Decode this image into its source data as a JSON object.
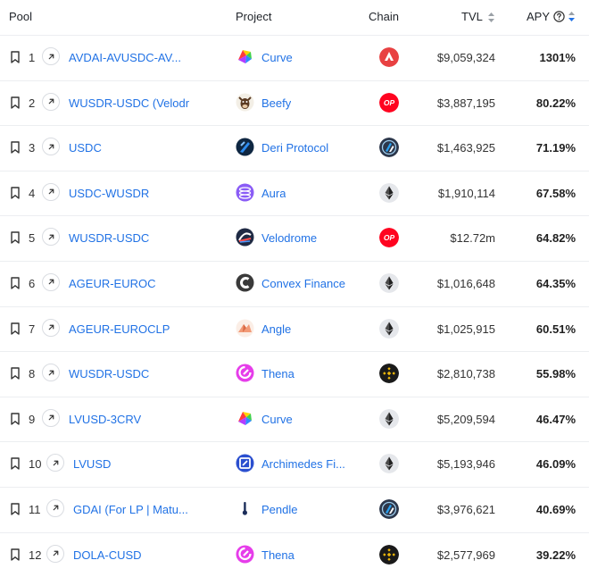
{
  "header": {
    "pool": "Pool",
    "project": "Project",
    "chain": "Chain",
    "tvl": "TVL",
    "apy": "APY"
  },
  "colors": {
    "link": "#2172e5",
    "sort_active": "#2172e5",
    "sort_inactive": "#9aa0a6"
  },
  "rows": [
    {
      "rank": "1",
      "pool": "AVDAI-AVUSDC-AV...",
      "project": "Curve",
      "project_icon": "curve-icon",
      "chain": "Avalanche",
      "chain_icon": "avalanche-icon",
      "tvl": "$9,059,324",
      "apy": "1301%"
    },
    {
      "rank": "2",
      "pool": "WUSDR-USDC (Velodr",
      "project": "Beefy",
      "project_icon": "beefy-icon",
      "chain": "Optimism",
      "chain_icon": "optimism-icon",
      "tvl": "$3,887,195",
      "apy": "80.22%"
    },
    {
      "rank": "3",
      "pool": "USDC",
      "project": "Deri Protocol",
      "project_icon": "deri-icon",
      "chain": "Arbitrum",
      "chain_icon": "arbitrum-icon",
      "tvl": "$1,463,925",
      "apy": "71.19%"
    },
    {
      "rank": "4",
      "pool": "USDC-WUSDR",
      "project": "Aura",
      "project_icon": "aura-icon",
      "chain": "Ethereum",
      "chain_icon": "ethereum-icon",
      "tvl": "$1,910,114",
      "apy": "67.58%"
    },
    {
      "rank": "5",
      "pool": "WUSDR-USDC",
      "project": "Velodrome",
      "project_icon": "velodrome-icon",
      "chain": "Optimism",
      "chain_icon": "optimism-icon",
      "tvl": "$12.72m",
      "apy": "64.82%"
    },
    {
      "rank": "6",
      "pool": "AGEUR-EUROC",
      "project": "Convex Finance",
      "project_icon": "convex-icon",
      "chain": "Ethereum",
      "chain_icon": "ethereum-icon",
      "tvl": "$1,016,648",
      "apy": "64.35%"
    },
    {
      "rank": "7",
      "pool": "AGEUR-EUROCLP",
      "project": "Angle",
      "project_icon": "angle-icon",
      "chain": "Ethereum",
      "chain_icon": "ethereum-icon",
      "tvl": "$1,025,915",
      "apy": "60.51%"
    },
    {
      "rank": "8",
      "pool": "WUSDR-USDC",
      "project": "Thena",
      "project_icon": "thena-icon",
      "chain": "BSC",
      "chain_icon": "bsc-icon",
      "tvl": "$2,810,738",
      "apy": "55.98%"
    },
    {
      "rank": "9",
      "pool": "LVUSD-3CRV",
      "project": "Curve",
      "project_icon": "curve-icon",
      "chain": "Ethereum",
      "chain_icon": "ethereum-icon",
      "tvl": "$5,209,594",
      "apy": "46.47%"
    },
    {
      "rank": "10",
      "pool": "LVUSD",
      "project": "Archimedes Fi...",
      "project_icon": "archimedes-icon",
      "chain": "Ethereum",
      "chain_icon": "ethereum-icon",
      "tvl": "$5,193,946",
      "apy": "46.09%"
    },
    {
      "rank": "11",
      "pool": "GDAI (For LP | Matu...",
      "project": "Pendle",
      "project_icon": "pendle-icon",
      "chain": "Arbitrum",
      "chain_icon": "arbitrum-icon",
      "tvl": "$3,976,621",
      "apy": "40.69%"
    },
    {
      "rank": "12",
      "pool": "DOLA-CUSD",
      "project": "Thena",
      "project_icon": "thena-icon",
      "chain": "BSC",
      "chain_icon": "bsc-icon",
      "tvl": "$2,577,969",
      "apy": "39.22%"
    }
  ]
}
